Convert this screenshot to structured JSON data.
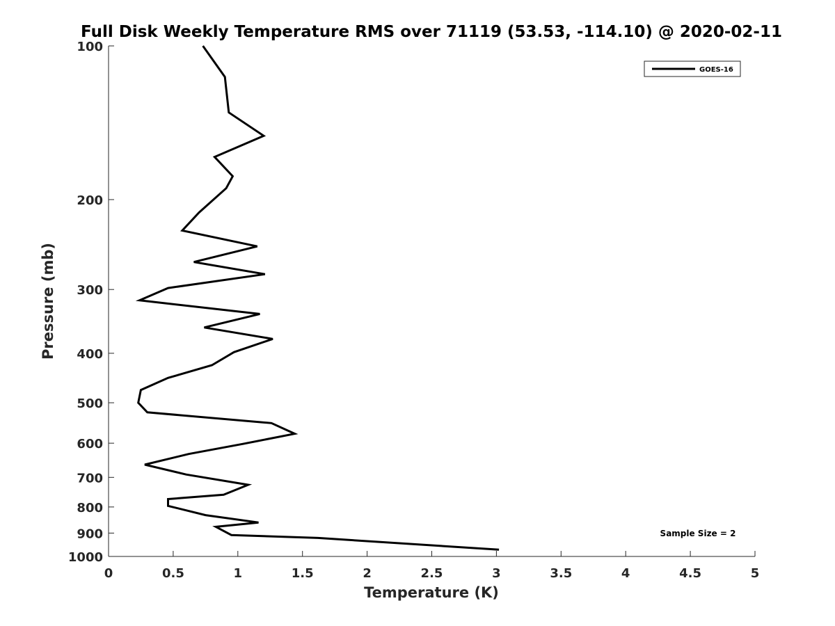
{
  "chart_data": {
    "type": "line",
    "title": "Full Disk Weekly Temperature RMS over 71119 (53.53, -114.10) @ 2020-02-11",
    "xlabel": "Temperature (K)",
    "ylabel": "Pressure (mb)",
    "xlim": [
      0,
      5
    ],
    "ylim": [
      100,
      1000
    ],
    "yscale": "log",
    "yreversed": true,
    "xticks": [
      0,
      0.5,
      1,
      1.5,
      2,
      2.5,
      3,
      3.5,
      4,
      4.5,
      5
    ],
    "xtick_labels": [
      "0",
      "0.5",
      "1",
      "1.5",
      "2",
      "2.5",
      "3",
      "3.5",
      "4",
      "4.5",
      "5"
    ],
    "yticks": [
      100,
      200,
      300,
      400,
      500,
      600,
      700,
      800,
      900,
      1000
    ],
    "ytick_labels": [
      "100",
      "200",
      "300",
      "400",
      "500",
      "600",
      "700",
      "800",
      "900",
      "1000"
    ],
    "grid": false,
    "legend": {
      "position": "top-right",
      "entries": [
        "GOES-16"
      ]
    },
    "annotation": "Sample Size = 2",
    "series": [
      {
        "name": "GOES-16",
        "color": "#000000",
        "x": [
          0.73,
          0.9,
          0.93,
          1.2,
          0.82,
          0.96,
          0.91,
          0.7,
          0.57,
          1.15,
          0.66,
          1.21,
          0.46,
          0.24,
          1.17,
          0.74,
          1.27,
          0.97,
          0.8,
          0.46,
          0.25,
          0.23,
          0.3,
          1.26,
          1.44,
          1.04,
          0.62,
          0.28,
          0.6,
          1.08,
          0.89,
          0.46,
          0.46,
          0.75,
          1.16,
          0.83,
          0.95,
          1.62,
          3.02
        ],
        "y": [
          100,
          115,
          135,
          150,
          165,
          180,
          190,
          212,
          230,
          247,
          265,
          280,
          298,
          315,
          335,
          356,
          375,
          398,
          422,
          447,
          472,
          500,
          522,
          548,
          575,
          602,
          630,
          661,
          691,
          724,
          757,
          772,
          796,
          830,
          858,
          875,
          908,
          920,
          970
        ]
      }
    ]
  }
}
